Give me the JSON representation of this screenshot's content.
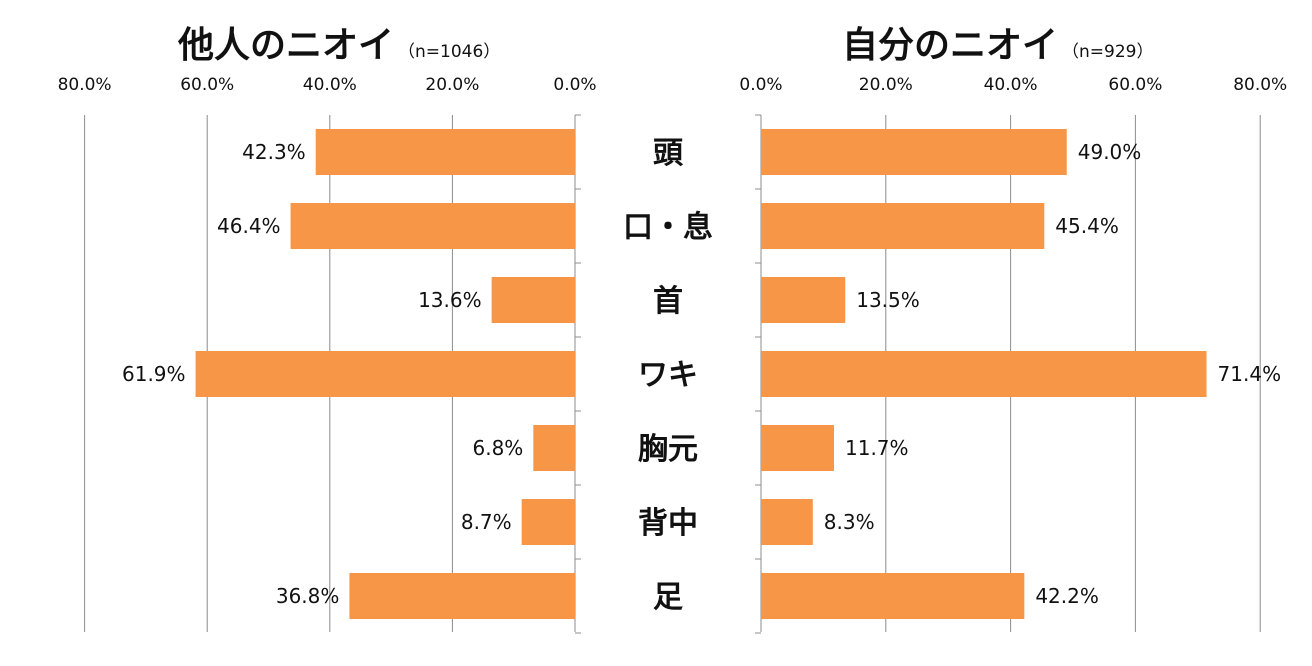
{
  "colors": {
    "bar": "#F79646",
    "grid": "#8c8c8c"
  },
  "categories": [
    "頭",
    "口・息",
    "首",
    "ワキ",
    "胸元",
    "背中",
    "足"
  ],
  "chart_data": [
    {
      "type": "bar",
      "orientation": "horizontal",
      "direction": "reversed",
      "title": "他人のニオイ",
      "subtitle": "（n=1046）",
      "categories": [
        "頭",
        "口・息",
        "首",
        "ワキ",
        "胸元",
        "背中",
        "足"
      ],
      "values": [
        42.3,
        46.4,
        13.6,
        61.9,
        6.8,
        8.7,
        36.8
      ],
      "value_labels": [
        "42.3%",
        "46.4%",
        "13.6%",
        "61.9%",
        "6.8%",
        "8.7%",
        "36.8%"
      ],
      "xlim": [
        0,
        80
      ],
      "ticks": [
        0,
        20,
        40,
        60,
        80
      ],
      "tick_labels": [
        "0.0%",
        "20.0%",
        "40.0%",
        "60.0%",
        "80.0%"
      ],
      "grid": true,
      "axis_position": "top"
    },
    {
      "type": "bar",
      "orientation": "horizontal",
      "direction": "normal",
      "title": "自分のニオイ",
      "subtitle": "（n=929）",
      "categories": [
        "頭",
        "口・息",
        "首",
        "ワキ",
        "胸元",
        "背中",
        "足"
      ],
      "values": [
        49.0,
        45.4,
        13.5,
        71.4,
        11.7,
        8.3,
        42.2
      ],
      "value_labels": [
        "49.0%",
        "45.4%",
        "13.5%",
        "71.4%",
        "11.7%",
        "8.3%",
        "42.2%"
      ],
      "xlim": [
        0,
        80
      ],
      "ticks": [
        0,
        20,
        40,
        60,
        80
      ],
      "tick_labels": [
        "0.0%",
        "20.0%",
        "40.0%",
        "60.0%",
        "80.0%"
      ],
      "grid": true,
      "axis_position": "top"
    }
  ]
}
